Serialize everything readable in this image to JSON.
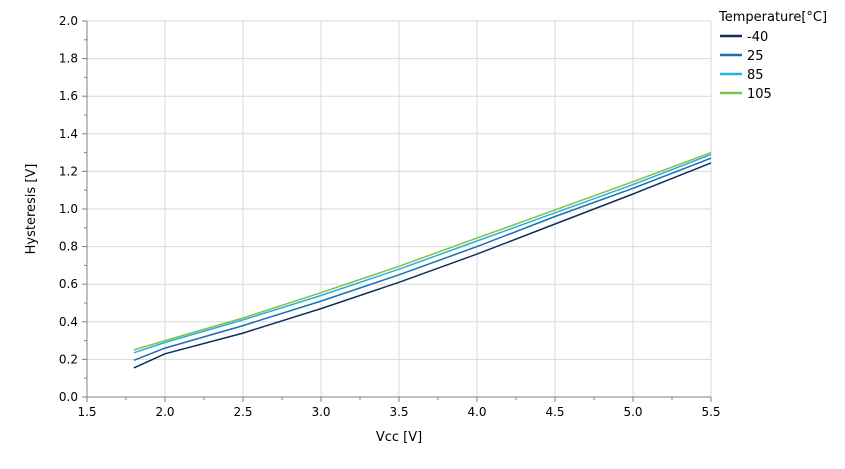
{
  "chart_data": {
    "type": "line",
    "xlabel": "Vcc [V]",
    "ylabel": "Hysteresis [V]",
    "xlim": [
      1.5,
      5.5
    ],
    "ylim": [
      0.0,
      2.0
    ],
    "xticks": [
      "1.5",
      "2.0",
      "2.5",
      "3.0",
      "3.5",
      "4.0",
      "4.5",
      "5.0",
      "5.5"
    ],
    "yticks": [
      "0.0",
      "0.2",
      "0.4",
      "0.6",
      "0.8",
      "1.0",
      "1.2",
      "1.4",
      "1.6",
      "1.8",
      "2.0"
    ],
    "grid": true,
    "legend": {
      "title": "Temperature[°C]",
      "placement": "right"
    },
    "x": [
      1.8,
      2.0,
      2.5,
      3.0,
      3.5,
      4.0,
      4.5,
      5.0,
      5.5
    ],
    "series": [
      {
        "name": "-40",
        "color": "#0d2f5c",
        "values": [
          0.155,
          0.23,
          0.34,
          0.47,
          0.61,
          0.76,
          0.92,
          1.08,
          1.245
        ]
      },
      {
        "name": "25",
        "color": "#1a6fb0",
        "values": [
          0.195,
          0.26,
          0.38,
          0.51,
          0.65,
          0.8,
          0.96,
          1.11,
          1.27
        ]
      },
      {
        "name": "85",
        "color": "#2ab0e0",
        "values": [
          0.235,
          0.29,
          0.41,
          0.54,
          0.68,
          0.83,
          0.98,
          1.13,
          1.29
        ]
      },
      {
        "name": "105",
        "color": "#7dc242",
        "values": [
          0.25,
          0.3,
          0.42,
          0.555,
          0.695,
          0.845,
          0.995,
          1.145,
          1.3
        ]
      }
    ]
  }
}
